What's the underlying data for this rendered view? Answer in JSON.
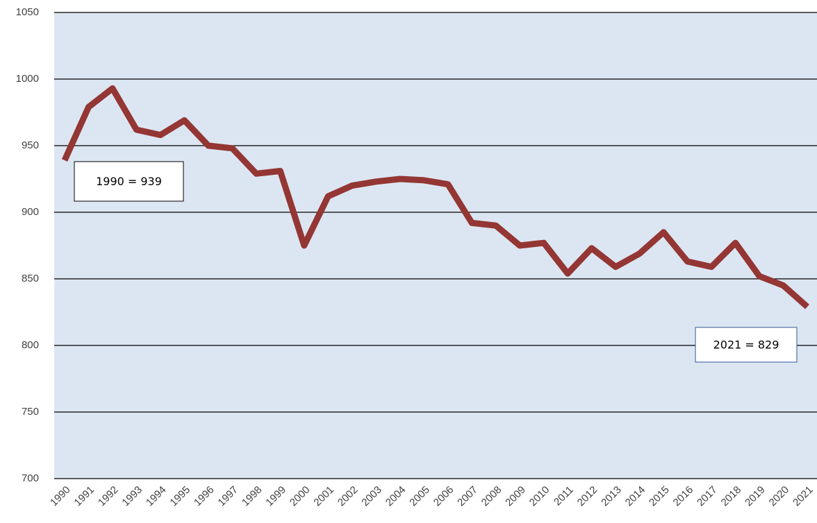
{
  "chart_data": {
    "type": "line",
    "categories": [
      "1990",
      "1991",
      "1992",
      "1993",
      "1994",
      "1995",
      "1996",
      "1997",
      "1998",
      "1999",
      "2000",
      "2001",
      "2002",
      "2003",
      "2004",
      "2005",
      "2006",
      "2007",
      "2008",
      "2009",
      "2010",
      "2011",
      "2012",
      "2013",
      "2014",
      "2015",
      "2016",
      "2017",
      "2018",
      "2019",
      "2020",
      "2021"
    ],
    "series": [
      {
        "color": "#943634",
        "values": [
          939,
          979,
          993,
          962,
          958,
          969,
          950,
          948,
          929,
          931,
          875,
          912,
          920,
          923,
          925,
          924,
          921,
          892,
          890,
          875,
          877,
          854,
          873,
          859,
          869,
          885,
          863,
          859,
          877,
          852,
          845,
          829
        ]
      }
    ],
    "ylim": [
      700,
      1050
    ],
    "yticks": [
      700,
      750,
      800,
      850,
      900,
      950,
      1000,
      1050
    ],
    "grid": true,
    "annotations": [
      "1990 = 939",
      "2021 = 829"
    ]
  }
}
